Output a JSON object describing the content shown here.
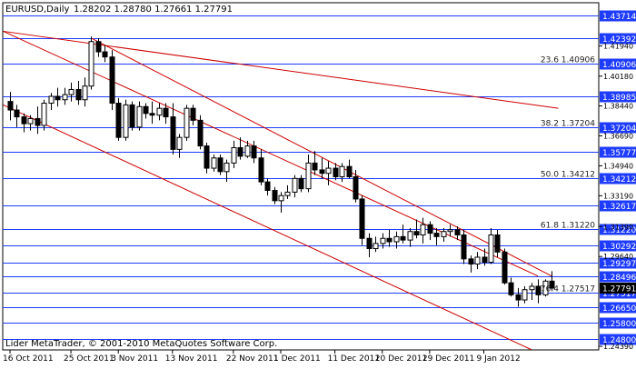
{
  "header": {
    "symbol": "EURUSD,Daily",
    "ohlc": "1.28202 1.28780 1.27661 1.27791"
  },
  "footer": {
    "copyright": "Lider MetaTrader, © 2001-2010 MetaQuotes Software Corp."
  },
  "colors": {
    "background": "#ffffff",
    "frame": "#000000",
    "hline": "#1e3cff",
    "trend": "#cc0000",
    "fib_text": "#222222",
    "price_box": "#1e3cff",
    "current_box": "#000000",
    "candle_bull": "#ffffff",
    "candle_bear": "#000000"
  },
  "horizontal_levels": [
    {
      "price": 1.43714,
      "label": "1.43714"
    },
    {
      "price": 1.42392,
      "label": "1.42392"
    },
    {
      "price": 1.40906,
      "label": "1.40906",
      "fib": "23.6 1.40906"
    },
    {
      "price": 1.38985,
      "label": "1.38985"
    },
    {
      "price": 1.37204,
      "label": "1.37204",
      "fib": "38.2 1.37204"
    },
    {
      "price": 1.35777,
      "label": "1.35777"
    },
    {
      "price": 1.34212,
      "label": "1.34212",
      "fib": "50.0 1.34212"
    },
    {
      "price": 1.32617,
      "label": "1.32617"
    },
    {
      "price": 1.3122,
      "label": "1.31220",
      "fib": "61.8 1.31220"
    },
    {
      "price": 1.30292,
      "label": "1.30292"
    },
    {
      "price": 1.29297,
      "label": "1.29297"
    },
    {
      "price": 1.28496,
      "label": "1.28496"
    },
    {
      "price": 1.27517,
      "label": "1.27517",
      "fib": "76.4 1.27517"
    },
    {
      "price": 1.2665,
      "label": "1.26650"
    },
    {
      "price": 1.258,
      "label": "1.25800"
    },
    {
      "price": 1.248,
      "label": "1.24800"
    }
  ],
  "current_price": {
    "price": 1.27791,
    "label": "1.27791"
  },
  "chart_data": {
    "type": "candlestick",
    "symbol": "EURUSD",
    "timeframe": "Daily",
    "ylim": [
      1.2418,
      1.4447
    ],
    "y_ticks": [
      "1.41940",
      "1.40180",
      "1.38440",
      "1.36690",
      "1.34940",
      "1.33190",
      "1.31390",
      "1.29640",
      "1.24390"
    ],
    "x_ticks": [
      "16 Oct 2011",
      "25 Oct 2011",
      "3 Nov 2011",
      "13 Nov 2011",
      "22 Nov 2011",
      "1 Dec 2011",
      "11 Dec 2011",
      "20 Dec 2011",
      "29 Dec 2011",
      "9 Jan 2012"
    ],
    "candles": [
      {
        "o": 1.387,
        "h": 1.3925,
        "l": 1.376,
        "c": 1.382
      },
      {
        "o": 1.382,
        "h": 1.385,
        "l": 1.372,
        "c": 1.378
      },
      {
        "o": 1.378,
        "h": 1.38,
        "l": 1.369,
        "c": 1.374
      },
      {
        "o": 1.374,
        "h": 1.379,
        "l": 1.37,
        "c": 1.377
      },
      {
        "o": 1.377,
        "h": 1.384,
        "l": 1.368,
        "c": 1.373
      },
      {
        "o": 1.373,
        "h": 1.388,
        "l": 1.37,
        "c": 1.386
      },
      {
        "o": 1.386,
        "h": 1.392,
        "l": 1.382,
        "c": 1.39
      },
      {
        "o": 1.39,
        "h": 1.395,
        "l": 1.384,
        "c": 1.388
      },
      {
        "o": 1.388,
        "h": 1.395,
        "l": 1.385,
        "c": 1.391
      },
      {
        "o": 1.391,
        "h": 1.398,
        "l": 1.387,
        "c": 1.394
      },
      {
        "o": 1.394,
        "h": 1.399,
        "l": 1.385,
        "c": 1.388
      },
      {
        "o": 1.388,
        "h": 1.401,
        "l": 1.384,
        "c": 1.396
      },
      {
        "o": 1.396,
        "h": 1.425,
        "l": 1.394,
        "c": 1.422
      },
      {
        "o": 1.422,
        "h": 1.424,
        "l": 1.413,
        "c": 1.416
      },
      {
        "o": 1.416,
        "h": 1.42,
        "l": 1.41,
        "c": 1.413
      },
      {
        "o": 1.413,
        "h": 1.417,
        "l": 1.382,
        "c": 1.386
      },
      {
        "o": 1.386,
        "h": 1.389,
        "l": 1.364,
        "c": 1.366
      },
      {
        "o": 1.366,
        "h": 1.388,
        "l": 1.364,
        "c": 1.385
      },
      {
        "o": 1.385,
        "h": 1.387,
        "l": 1.37,
        "c": 1.372
      },
      {
        "o": 1.372,
        "h": 1.387,
        "l": 1.37,
        "c": 1.384
      },
      {
        "o": 1.384,
        "h": 1.386,
        "l": 1.377,
        "c": 1.38
      },
      {
        "o": 1.38,
        "h": 1.387,
        "l": 1.374,
        "c": 1.379
      },
      {
        "o": 1.379,
        "h": 1.386,
        "l": 1.376,
        "c": 1.383
      },
      {
        "o": 1.383,
        "h": 1.386,
        "l": 1.374,
        "c": 1.378
      },
      {
        "o": 1.378,
        "h": 1.386,
        "l": 1.356,
        "c": 1.359
      },
      {
        "o": 1.359,
        "h": 1.368,
        "l": 1.354,
        "c": 1.366
      },
      {
        "o": 1.366,
        "h": 1.385,
        "l": 1.364,
        "c": 1.383
      },
      {
        "o": 1.383,
        "h": 1.385,
        "l": 1.373,
        "c": 1.376
      },
      {
        "o": 1.376,
        "h": 1.379,
        "l": 1.359,
        "c": 1.361
      },
      {
        "o": 1.361,
        "h": 1.363,
        "l": 1.345,
        "c": 1.348
      },
      {
        "o": 1.348,
        "h": 1.356,
        "l": 1.346,
        "c": 1.354
      },
      {
        "o": 1.354,
        "h": 1.356,
        "l": 1.344,
        "c": 1.346
      },
      {
        "o": 1.346,
        "h": 1.353,
        "l": 1.34,
        "c": 1.351
      },
      {
        "o": 1.351,
        "h": 1.364,
        "l": 1.348,
        "c": 1.36
      },
      {
        "o": 1.36,
        "h": 1.366,
        "l": 1.353,
        "c": 1.355
      },
      {
        "o": 1.355,
        "h": 1.364,
        "l": 1.354,
        "c": 1.361
      },
      {
        "o": 1.361,
        "h": 1.364,
        "l": 1.351,
        "c": 1.354
      },
      {
        "o": 1.354,
        "h": 1.359,
        "l": 1.338,
        "c": 1.34
      },
      {
        "o": 1.34,
        "h": 1.342,
        "l": 1.332,
        "c": 1.335
      },
      {
        "o": 1.335,
        "h": 1.337,
        "l": 1.327,
        "c": 1.329
      },
      {
        "o": 1.329,
        "h": 1.334,
        "l": 1.322,
        "c": 1.332
      },
      {
        "o": 1.332,
        "h": 1.338,
        "l": 1.33,
        "c": 1.334
      },
      {
        "o": 1.334,
        "h": 1.344,
        "l": 1.331,
        "c": 1.342
      },
      {
        "o": 1.342,
        "h": 1.344,
        "l": 1.334,
        "c": 1.336
      },
      {
        "o": 1.336,
        "h": 1.356,
        "l": 1.334,
        "c": 1.351
      },
      {
        "o": 1.351,
        "h": 1.358,
        "l": 1.344,
        "c": 1.347
      },
      {
        "o": 1.347,
        "h": 1.354,
        "l": 1.342,
        "c": 1.345
      },
      {
        "o": 1.345,
        "h": 1.352,
        "l": 1.338,
        "c": 1.348
      },
      {
        "o": 1.348,
        "h": 1.351,
        "l": 1.341,
        "c": 1.343
      },
      {
        "o": 1.343,
        "h": 1.351,
        "l": 1.34,
        "c": 1.349
      },
      {
        "o": 1.349,
        "h": 1.353,
        "l": 1.342,
        "c": 1.343
      },
      {
        "o": 1.343,
        "h": 1.347,
        "l": 1.328,
        "c": 1.33
      },
      {
        "o": 1.33,
        "h": 1.332,
        "l": 1.303,
        "c": 1.307
      },
      {
        "o": 1.307,
        "h": 1.31,
        "l": 1.296,
        "c": 1.301
      },
      {
        "o": 1.301,
        "h": 1.308,
        "l": 1.299,
        "c": 1.304
      },
      {
        "o": 1.304,
        "h": 1.31,
        "l": 1.301,
        "c": 1.307
      },
      {
        "o": 1.307,
        "h": 1.312,
        "l": 1.302,
        "c": 1.305
      },
      {
        "o": 1.305,
        "h": 1.311,
        "l": 1.301,
        "c": 1.308
      },
      {
        "o": 1.308,
        "h": 1.315,
        "l": 1.304,
        "c": 1.306
      },
      {
        "o": 1.306,
        "h": 1.313,
        "l": 1.302,
        "c": 1.311
      },
      {
        "o": 1.311,
        "h": 1.318,
        "l": 1.307,
        "c": 1.309
      },
      {
        "o": 1.309,
        "h": 1.319,
        "l": 1.304,
        "c": 1.315
      },
      {
        "o": 1.315,
        "h": 1.317,
        "l": 1.306,
        "c": 1.31
      },
      {
        "o": 1.31,
        "h": 1.313,
        "l": 1.303,
        "c": 1.308
      },
      {
        "o": 1.308,
        "h": 1.313,
        "l": 1.305,
        "c": 1.311
      },
      {
        "o": 1.311,
        "h": 1.315,
        "l": 1.308,
        "c": 1.312
      },
      {
        "o": 1.312,
        "h": 1.314,
        "l": 1.306,
        "c": 1.309
      },
      {
        "o": 1.309,
        "h": 1.312,
        "l": 1.292,
        "c": 1.295
      },
      {
        "o": 1.295,
        "h": 1.297,
        "l": 1.287,
        "c": 1.292
      },
      {
        "o": 1.292,
        "h": 1.299,
        "l": 1.289,
        "c": 1.296
      },
      {
        "o": 1.296,
        "h": 1.301,
        "l": 1.291,
        "c": 1.293
      },
      {
        "o": 1.293,
        "h": 1.313,
        "l": 1.292,
        "c": 1.309
      },
      {
        "o": 1.309,
        "h": 1.312,
        "l": 1.296,
        "c": 1.299
      },
      {
        "o": 1.299,
        "h": 1.301,
        "l": 1.28,
        "c": 1.281
      },
      {
        "o": 1.281,
        "h": 1.284,
        "l": 1.273,
        "c": 1.274
      },
      {
        "o": 1.274,
        "h": 1.278,
        "l": 1.267,
        "c": 1.271
      },
      {
        "o": 1.271,
        "h": 1.279,
        "l": 1.269,
        "c": 1.277
      },
      {
        "o": 1.277,
        "h": 1.281,
        "l": 1.271,
        "c": 1.279
      },
      {
        "o": 1.279,
        "h": 1.283,
        "l": 1.269,
        "c": 1.274
      },
      {
        "o": 1.274,
        "h": 1.283,
        "l": 1.273,
        "c": 1.282
      },
      {
        "o": 1.282,
        "h": 1.2878,
        "l": 1.2766,
        "c": 1.2779
      }
    ],
    "trendlines": [
      {
        "from": {
          "i": -1,
          "p": 1.428
        },
        "to": {
          "i": 78,
          "p": 1.285
        }
      },
      {
        "from": {
          "i": -1,
          "p": 1.385
        },
        "to": {
          "i": 77,
          "p": 1.242
        }
      },
      {
        "from": {
          "i": 12,
          "p": 1.424
        },
        "to": {
          "i": 80,
          "p": 1.285
        }
      },
      {
        "from": {
          "i": -1,
          "p": 1.428
        },
        "to": {
          "i": 81,
          "p": 1.383
        }
      }
    ]
  }
}
